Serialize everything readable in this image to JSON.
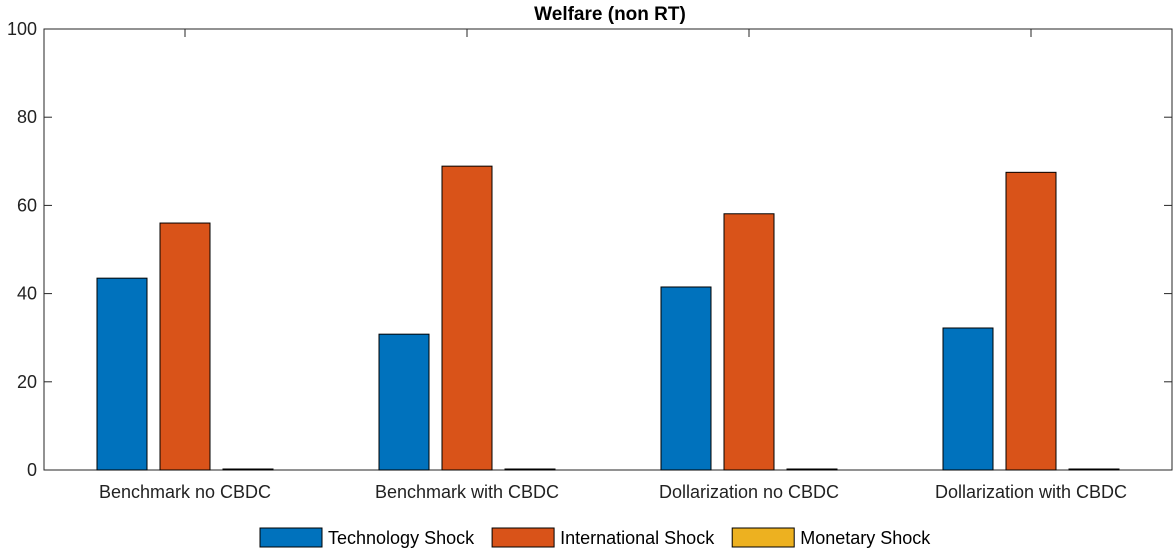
{
  "chart_data": {
    "type": "bar",
    "title": "Welfare (non RT)",
    "xlabel": "",
    "ylabel": "",
    "ylim": [
      0,
      100
    ],
    "yticks": [
      0,
      20,
      40,
      60,
      80,
      100
    ],
    "grid": false,
    "legend_position": "bottom",
    "categories": [
      "Benchmark no CBDC",
      "Benchmark with CBDC",
      "Dollarization no CBDC",
      "Dollarization with CBDC"
    ],
    "series": [
      {
        "name": "Technology Shock",
        "color": "#0072BD",
        "values": [
          43.5,
          30.8,
          41.5,
          32.2
        ]
      },
      {
        "name": "International Shock",
        "color": "#D95319",
        "values": [
          56.0,
          68.9,
          58.1,
          67.5
        ]
      },
      {
        "name": "Monetary Shock",
        "color": "#EDB120",
        "values": [
          0.1,
          0.1,
          0.1,
          0.1
        ]
      }
    ]
  }
}
